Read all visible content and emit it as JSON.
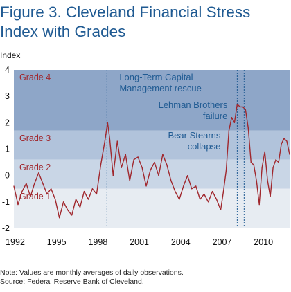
{
  "chart_data": {
    "type": "line",
    "title_lines": [
      "Figure 3. Cleveland Financial Stress",
      "Index with Grades"
    ],
    "ylabel": "Index",
    "xlim": [
      1992,
      2012
    ],
    "ylim": [
      -2,
      4
    ],
    "yticks": [
      4,
      3,
      2,
      1,
      0,
      -1,
      -2
    ],
    "xticks": [
      1992,
      1995,
      1998,
      2001,
      2004,
      2007,
      2010
    ],
    "grid": false,
    "colors": {
      "line": "#a0272d",
      "grade4": "#8ea6c8",
      "grade3": "#b1c3db",
      "grade2": "#c9d6e6",
      "grade1": "#e7ecf2",
      "event_line": "#1f5a92",
      "title": "#1f5a92"
    },
    "grades": [
      {
        "name": "Grade 4",
        "from": 1.7,
        "to": 4
      },
      {
        "name": "Grade 3",
        "from": 0.6,
        "to": 1.7
      },
      {
        "name": "Grade 2",
        "from": -0.5,
        "to": 0.6
      },
      {
        "name": "Grade 1",
        "from": -2,
        "to": -0.5
      }
    ],
    "events": [
      {
        "x": 1998.75,
        "label_lines": [
          "Long-Term Capital",
          "Management rescue"
        ]
      },
      {
        "x": 2008.2,
        "label_lines": [
          "Bear Stearns",
          "collapse"
        ]
      },
      {
        "x": 2008.7,
        "label_lines": [
          "Lehman Brothers",
          "failure"
        ]
      }
    ],
    "series": [
      {
        "x": [
          1992.0,
          1992.3,
          1992.6,
          1992.9,
          1993.2,
          1993.5,
          1993.8,
          1994.1,
          1994.4,
          1994.7,
          1995.0,
          1995.3,
          1995.6,
          1995.9,
          1996.2,
          1996.5,
          1996.8,
          1997.1,
          1997.4,
          1997.7,
          1998.0,
          1998.3,
          1998.6,
          1998.8,
          1998.95,
          1999.2,
          1999.5,
          1999.8,
          2000.1,
          2000.4,
          2000.7,
          2001.0,
          2001.3,
          2001.6,
          2001.9,
          2002.2,
          2002.5,
          2002.8,
          2003.1,
          2003.4,
          2003.7,
          2004.0,
          2004.3,
          2004.6,
          2004.9,
          2005.2,
          2005.5,
          2005.8,
          2006.1,
          2006.4,
          2006.7,
          2007.0,
          2007.2,
          2007.4,
          2007.6,
          2007.8,
          2008.0,
          2008.2,
          2008.4,
          2008.6,
          2008.8,
          2009.0,
          2009.2,
          2009.4,
          2009.6,
          2009.8,
          2010.0,
          2010.2,
          2010.4,
          2010.6,
          2010.8,
          2011.0,
          2011.2,
          2011.4,
          2011.6,
          2011.8,
          2012.0
        ],
        "values": [
          -0.4,
          -1.1,
          -0.6,
          -0.3,
          -0.8,
          -0.3,
          0.1,
          -0.3,
          -0.7,
          -0.5,
          -0.9,
          -1.6,
          -1.0,
          -1.3,
          -1.5,
          -0.9,
          -1.2,
          -0.6,
          -0.9,
          -0.5,
          -0.7,
          0.4,
          1.3,
          2.0,
          1.4,
          0.0,
          1.3,
          0.3,
          0.8,
          -0.2,
          0.6,
          0.7,
          0.3,
          -0.4,
          0.2,
          0.5,
          0.0,
          0.8,
          0.4,
          -0.2,
          -0.6,
          -0.9,
          -0.4,
          0.0,
          -0.5,
          -0.4,
          -0.9,
          -0.7,
          -1.0,
          -0.6,
          -0.9,
          -1.3,
          -0.6,
          0.2,
          1.7,
          2.2,
          2.0,
          2.7,
          2.6,
          2.6,
          2.5,
          1.8,
          0.5,
          0.4,
          -0.2,
          -1.1,
          0.3,
          0.9,
          -0.2,
          -0.8,
          0.3,
          0.6,
          0.5,
          1.2,
          1.4,
          1.3,
          0.8
        ]
      }
    ]
  },
  "note_lines": [
    "Note: Values are monthly averages of daily observations.",
    "Source: Federal Reserve Bank of Cleveland."
  ]
}
